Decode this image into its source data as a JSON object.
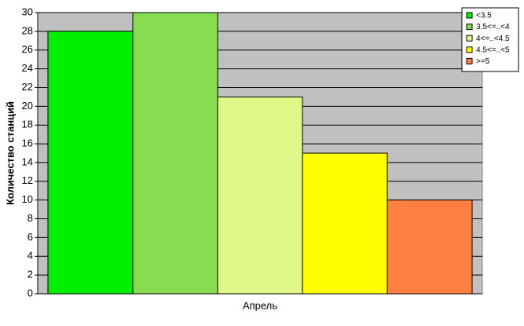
{
  "chart_data": {
    "type": "bar",
    "y_label": "Количество станций",
    "categories": [
      "Апрель"
    ],
    "series": [
      {
        "name": "<3.5",
        "color": "#00f000",
        "values": [
          28
        ]
      },
      {
        "name": "3.5<=..<4",
        "color": "#88dc50",
        "values": [
          30
        ]
      },
      {
        "name": "4<=..<4.5",
        "color": "#e0f888",
        "values": [
          21
        ]
      },
      {
        "name": "4.5<=..<5",
        "color": "#ffff00",
        "values": [
          15
        ]
      },
      {
        "name": ">=5",
        "color": "#ff8040",
        "values": [
          10
        ]
      }
    ],
    "ylim": [
      0,
      30
    ],
    "yticks": [
      0,
      2,
      4,
      6,
      8,
      10,
      12,
      14,
      16,
      18,
      20,
      22,
      24,
      26,
      28,
      30
    ],
    "grid": true,
    "legend": "top-right"
  }
}
